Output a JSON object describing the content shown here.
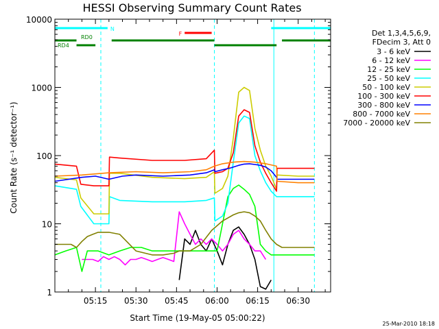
{
  "chart_data": {
    "type": "line",
    "title": "HESSI Observing Summary Count Rates",
    "xlabel": "Start Time (19-May-05 05:00:22)",
    "ylabel": "Count Rate (s⁻¹ detector⁻¹)",
    "y_scale": "log",
    "ylim": [
      1,
      10000
    ],
    "x_unit": "minutes after 05:00",
    "xlim": [
      0,
      102
    ],
    "x_ticks": [
      {
        "x": 15,
        "label": "05:15"
      },
      {
        "x": 30,
        "label": "05:30"
      },
      {
        "x": 45,
        "label": "05:45"
      },
      {
        "x": 60,
        "label": "06:00"
      },
      {
        "x": 75,
        "label": "06:15"
      },
      {
        "x": 90,
        "label": "06:30"
      }
    ],
    "y_ticks": [
      {
        "y": 1,
        "label": "1"
      },
      {
        "y": 10,
        "label": "10"
      },
      {
        "y": 100,
        "label": "100"
      },
      {
        "y": 1000,
        "label": "1000"
      },
      {
        "y": 10000,
        "label": "10000"
      }
    ],
    "legend_header": [
      "Det 1,3,4,5,6,9,",
      "FDecim 3, Att 0"
    ],
    "legend_position": "right",
    "series": [
      {
        "name": "3 - 6 keV",
        "color": "#000000",
        "x": [
          0,
          44,
          46,
          48,
          50,
          52,
          54,
          56,
          58,
          60,
          62,
          64,
          66,
          68,
          70,
          72,
          74,
          76,
          78,
          80,
          82
        ],
        "y": [
          null,
          null,
          1.5,
          6,
          5,
          8,
          5,
          4,
          6,
          4,
          2.5,
          5,
          8,
          9,
          7,
          5,
          3,
          1.2,
          1.1,
          1.5,
          null
        ]
      },
      {
        "name": "6 - 12 keV",
        "color": "#ff00ff",
        "x": [
          10,
          12,
          14,
          16,
          18,
          20,
          22,
          24,
          26,
          28,
          30,
          32,
          34,
          36,
          38,
          40,
          42,
          44,
          46,
          48,
          50,
          52,
          54,
          56,
          58,
          60,
          62,
          64,
          66,
          68,
          70,
          72,
          74,
          76,
          78
        ],
        "y": [
          3,
          3,
          3,
          2.8,
          3.3,
          3,
          3.3,
          3,
          2.5,
          3,
          3,
          3.2,
          3,
          2.8,
          3,
          3.2,
          3,
          2.8,
          15,
          10,
          7,
          5,
          6,
          5,
          6,
          5,
          4,
          5,
          7,
          8,
          6,
          5,
          4,
          4,
          3
        ]
      },
      {
        "name": "12 - 25 keV",
        "color": "#00ff00",
        "x": [
          0,
          4,
          8,
          10,
          12,
          16,
          20,
          24,
          28,
          32,
          36,
          40,
          44,
          48,
          52,
          56,
          60,
          62,
          64,
          66,
          68,
          70,
          72,
          74,
          76,
          78,
          80,
          84,
          88,
          92,
          96
        ],
        "y": [
          3.5,
          4,
          4.5,
          2,
          4,
          4,
          3.5,
          4,
          4.5,
          4.5,
          4,
          4,
          4,
          4,
          4,
          4,
          4,
          10,
          25,
          33,
          37,
          32,
          27,
          18,
          5,
          4,
          3.5,
          3.5,
          3.5,
          3.5,
          3.5
        ]
      },
      {
        "name": "25 - 50 keV",
        "color": "#00ffff",
        "x": [
          0,
          8,
          9.6,
          14.4,
          20,
          20.2,
          24,
          36,
          48,
          56,
          59,
          59.2,
          62,
          64,
          66,
          68,
          70,
          72,
          74,
          76,
          78,
          80,
          82,
          82.2,
          90,
          96
        ],
        "y": [
          36,
          32,
          18,
          10,
          10,
          25,
          22,
          21,
          21,
          22,
          24,
          11,
          13,
          20,
          80,
          300,
          380,
          350,
          100,
          60,
          40,
          30,
          25,
          25,
          25,
          25
        ]
      },
      {
        "name": "50 - 100 keV",
        "color": "#cccc00",
        "x": [
          0,
          8,
          9.6,
          14.4,
          20,
          20.2,
          24,
          36,
          48,
          56,
          59,
          59.2,
          62,
          64,
          66,
          68,
          70,
          72,
          74,
          76,
          78,
          80,
          82,
          82.2,
          90,
          96
        ],
        "y": [
          48,
          44,
          24,
          14,
          14,
          55,
          55,
          48,
          46,
          48,
          58,
          28,
          33,
          50,
          180,
          850,
          1000,
          900,
          250,
          120,
          70,
          50,
          32,
          52,
          50,
          50
        ]
      },
      {
        "name": "100 - 300 keV",
        "color": "#ff0000",
        "x": [
          0,
          8,
          9.6,
          14.4,
          20,
          20.2,
          24,
          36,
          48,
          56,
          59,
          59.2,
          62,
          64,
          66,
          68,
          70,
          72,
          74,
          76,
          78,
          80,
          82,
          82.2,
          90,
          96
        ],
        "y": [
          75,
          70,
          38,
          36,
          36,
          95,
          92,
          85,
          85,
          90,
          120,
          55,
          58,
          65,
          110,
          380,
          470,
          430,
          140,
          80,
          55,
          40,
          30,
          65,
          65,
          65
        ]
      },
      {
        "name": "300 - 800 keV",
        "color": "#0000ff",
        "x": [
          0,
          10,
          15,
          20,
          25,
          30,
          40,
          50,
          56,
          59,
          59.2,
          62,
          65,
          68,
          70,
          72,
          74,
          76,
          78,
          80,
          82,
          82.2,
          90,
          96
        ],
        "y": [
          42,
          48,
          50,
          45,
          50,
          52,
          50,
          52,
          56,
          62,
          58,
          62,
          66,
          72,
          75,
          76,
          74,
          72,
          68,
          60,
          48,
          45,
          45,
          45
        ]
      },
      {
        "name": "800 - 7000 keV",
        "color": "#ff8000",
        "x": [
          0,
          10,
          20,
          30,
          40,
          50,
          56,
          59,
          62,
          66,
          70,
          74,
          78,
          82,
          82.2,
          90,
          96
        ],
        "y": [
          50,
          52,
          56,
          58,
          56,
          58,
          62,
          70,
          76,
          80,
          82,
          80,
          76,
          70,
          42,
          40,
          40
        ]
      },
      {
        "name": "7000 - 20000 keV",
        "color": "#808000",
        "x": [
          0,
          6,
          8,
          10,
          12,
          14,
          16,
          18,
          20,
          24,
          30,
          36,
          40,
          44,
          46,
          50,
          54,
          58,
          62,
          66,
          68,
          70,
          72,
          74,
          76,
          78,
          80,
          82,
          84,
          88,
          92,
          96
        ],
        "y": [
          5,
          5,
          4.5,
          5.5,
          6.5,
          7,
          7.5,
          7.5,
          7.5,
          7,
          4,
          3.5,
          3.5,
          3.7,
          4,
          4,
          5,
          8,
          11,
          13.5,
          14.5,
          15,
          14.5,
          13,
          11,
          8,
          6,
          5,
          4.5,
          4.5,
          4.5,
          4.5
        ]
      }
    ],
    "annotations": [
      {
        "text": "N",
        "color": "#00ffff",
        "bars": [
          {
            "x0": 0,
            "x1": 19.5
          },
          {
            "x0": 80,
            "x1": 102
          }
        ]
      },
      {
        "text": "F",
        "color": "#ff0000",
        "bars": [
          {
            "x0": 48,
            "x1": 58
          }
        ]
      },
      {
        "text": "RD0",
        "color": "#008000",
        "bars": [
          {
            "x0": 0,
            "x1": 8
          },
          {
            "x0": 21,
            "x1": 59
          },
          {
            "x0": 84,
            "x1": 102
          }
        ]
      },
      {
        "text": "RD4",
        "color": "#008000",
        "bars": [
          {
            "x0": 8,
            "x1": 15
          },
          {
            "x0": 59,
            "x1": 82
          }
        ]
      }
    ],
    "vlines": [
      {
        "x": 0,
        "color": "#00ffff",
        "style": "solid"
      },
      {
        "x": 17,
        "color": "#00ffff",
        "style": "dashed"
      },
      {
        "x": 59,
        "color": "#00ffff",
        "style": "dashed"
      },
      {
        "x": 81,
        "color": "#00ffff",
        "style": "solid"
      },
      {
        "x": 96,
        "color": "#00ffff",
        "style": "dashed"
      }
    ],
    "grid": false
  },
  "footer": {
    "date_stamp": "25-Mar-2010 18:18"
  }
}
